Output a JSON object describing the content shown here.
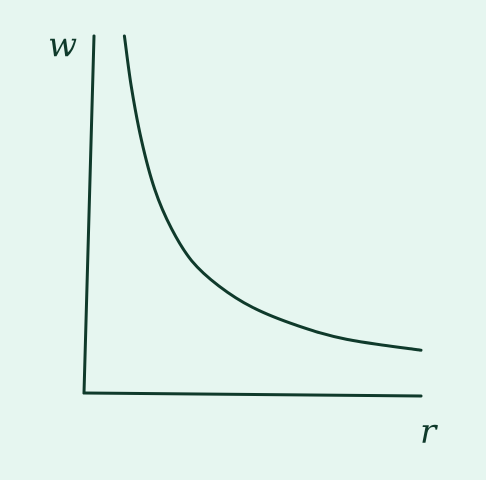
{
  "chart_data": {
    "type": "line",
    "title": "",
    "xlabel": "r",
    "ylabel": "w",
    "xlim": [
      0,
      10
    ],
    "ylim": [
      0,
      10
    ],
    "grid": false,
    "legend": "none",
    "ticks": "none",
    "series": [
      {
        "x": [
          1.2,
          1.4,
          1.7,
          2.1,
          2.6,
          3.2,
          4.0,
          5.0,
          6.3,
          7.8,
          10.0
        ],
        "y": [
          10.0,
          8.6,
          7.1,
          5.7,
          4.6,
          3.7,
          3.0,
          2.4,
          1.9,
          1.5,
          1.2
        ]
      }
    ],
    "colors": {
      "background": "#e6f6f0",
      "ink": "#0f3a2b"
    }
  }
}
